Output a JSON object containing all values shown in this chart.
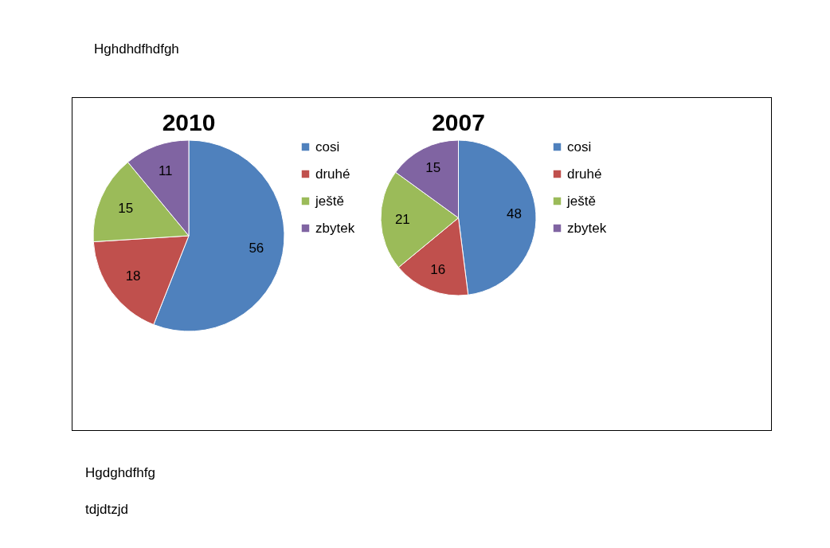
{
  "chart_data": [
    {
      "type": "pie",
      "title": "2010",
      "categories": [
        "cosi",
        "druhé",
        "ještě",
        "zbytek"
      ],
      "values": [
        56,
        18,
        15,
        11
      ],
      "colors": [
        "#4f81bd",
        "#c0504d",
        "#9bbb59",
        "#8064a2"
      ],
      "data_labels": true,
      "legend": "right",
      "annotations": [
        "Hghdhdfhdfgh"
      ]
    },
    {
      "type": "pie",
      "title": "2007",
      "categories": [
        "cosi",
        "druhé",
        "ještě",
        "zbytek"
      ],
      "values": [
        48,
        16,
        21,
        15
      ],
      "colors": [
        "#4f81bd",
        "#c0504d",
        "#9bbb59",
        "#8064a2"
      ],
      "data_labels": true,
      "legend": "right",
      "annotations": [
        "Hgdghdfhfg",
        "tdjdtzjd"
      ]
    }
  ]
}
